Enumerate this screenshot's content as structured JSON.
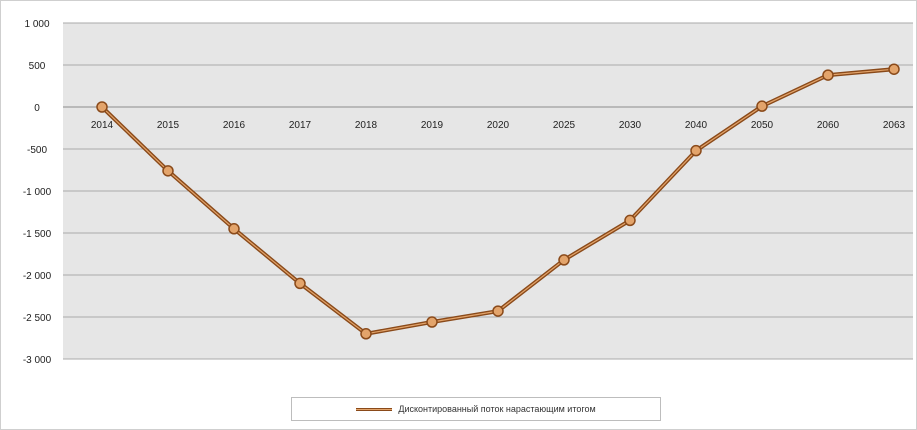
{
  "chart_data": {
    "type": "line",
    "title": "",
    "xlabel": "",
    "ylabel": "",
    "categories": [
      "2014",
      "2015",
      "2016",
      "2017",
      "2018",
      "2019",
      "2020",
      "2025",
      "2030",
      "2040",
      "2050",
      "2060",
      "2063"
    ],
    "series": [
      {
        "name": "Дисконтированный поток нарастающим итогом",
        "values": [
          0,
          -760,
          -1450,
          -2100,
          -2700,
          -2560,
          -2430,
          -1820,
          -1350,
          -520,
          10,
          380,
          450
        ],
        "line_color": "#8a4a1a",
        "marker_color": "#e3a46b"
      }
    ],
    "y_ticks": [
      "1 000",
      "500",
      "0",
      "-500",
      "-1 000",
      "-1 500",
      "-2 000",
      "-2 500",
      "-3 000"
    ],
    "ylim": [
      -3000,
      1000
    ],
    "y_tick_step": 500,
    "grid": true,
    "plot_background": "#e6e6e6",
    "legend_position": "bottom"
  }
}
